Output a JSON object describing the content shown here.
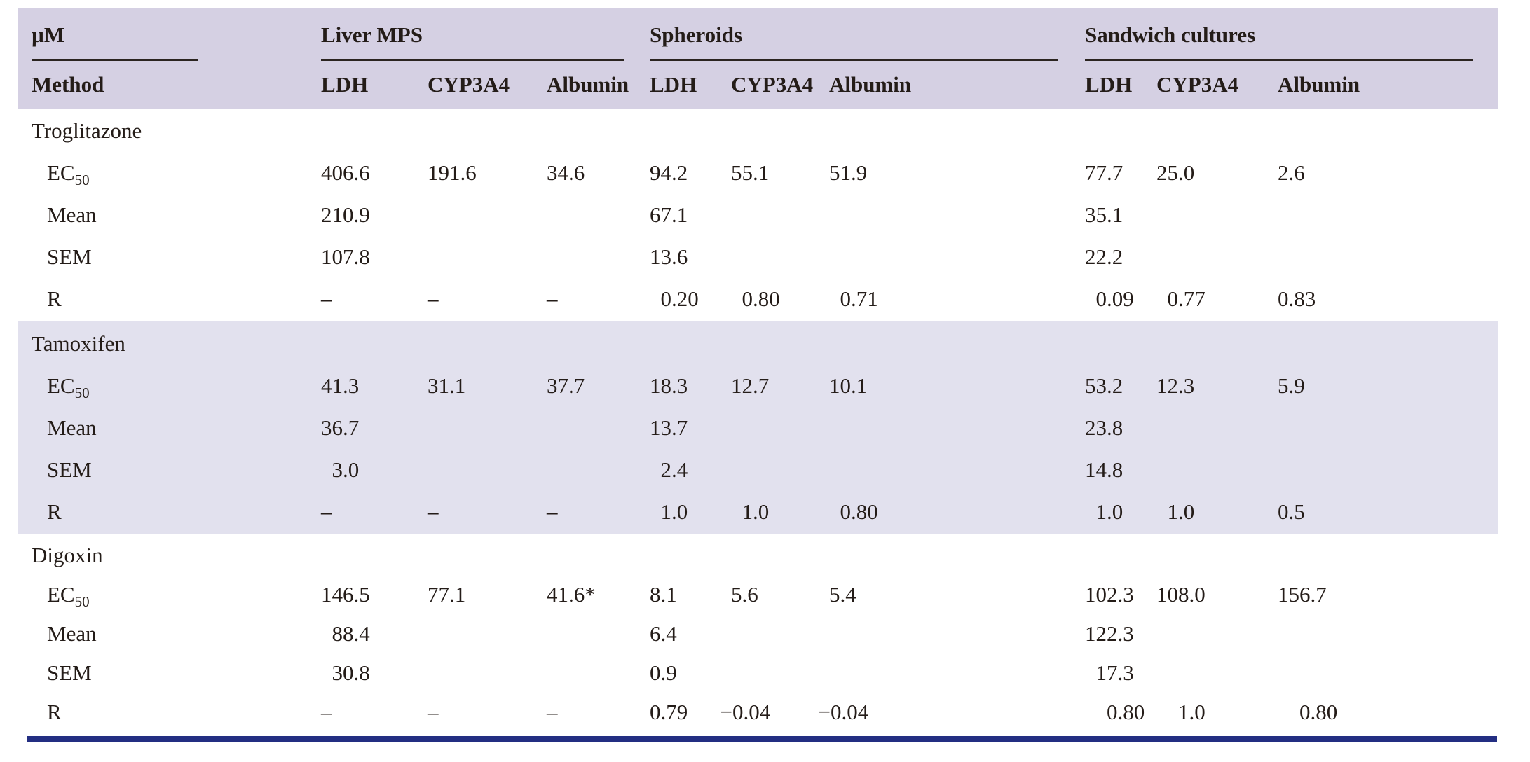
{
  "table": {
    "unit_label": "µM",
    "method_label": "Method",
    "groups": [
      {
        "label": "Liver MPS"
      },
      {
        "label": "Spheroids"
      },
      {
        "label": "Sandwich cultures"
      }
    ],
    "columns": [
      "LDH",
      "CYP3A4",
      "Albumin",
      "LDH",
      "CYP3A4",
      "Albumin",
      "LDH",
      "CYP3A4",
      "Albumin"
    ],
    "sections": [
      {
        "compound": "Troglitazone",
        "highlight": false,
        "rows": [
          {
            "label": "EC",
            "label_sub": "50",
            "values": [
              "406.6",
              "191.6",
              "34.6",
              "94.2",
              "55.1",
              "51.9",
              "77.7",
              "25.0",
              "2.6"
            ]
          },
          {
            "label": "Mean",
            "values": [
              "210.9",
              "",
              "",
              "67.1",
              "",
              "",
              "35.1",
              "",
              ""
            ]
          },
          {
            "label": "SEM",
            "values": [
              "107.8",
              "",
              "",
              "13.6",
              "",
              "",
              "22.2",
              "",
              ""
            ]
          },
          {
            "label": "R",
            "values": [
              "–",
              "–",
              "–",
              "0.20",
              "0.80",
              "0.71",
              "0.09",
              "0.77",
              "0.83"
            ]
          }
        ]
      },
      {
        "compound": "Tamoxifen",
        "highlight": true,
        "rows": [
          {
            "label": "EC",
            "label_sub": "50",
            "values": [
              "41.3",
              "31.1",
              "37.7",
              "18.3",
              "12.7",
              "10.1",
              "53.2",
              "12.3",
              "5.9"
            ]
          },
          {
            "label": "Mean",
            "values": [
              "36.7",
              "",
              "",
              "13.7",
              "",
              "",
              "23.8",
              "",
              ""
            ]
          },
          {
            "label": "SEM",
            "values": [
              "3.0",
              "",
              "",
              "2.4",
              "",
              "",
              "14.8",
              "",
              ""
            ]
          },
          {
            "label": "R",
            "values": [
              "–",
              "–",
              "–",
              "1.0",
              "1.0",
              "0.80",
              "1.0",
              "1.0",
              "0.5"
            ]
          }
        ]
      },
      {
        "compound": "Digoxin",
        "highlight": false,
        "rows": [
          {
            "label": "EC",
            "label_sub": "50",
            "values": [
              "146.5",
              "77.1",
              "41.6*",
              "8.1",
              "5.6",
              "5.4",
              "102.3",
              "108.0",
              "156.7"
            ]
          },
          {
            "label": "Mean",
            "values": [
              "88.4",
              "",
              "",
              "6.4",
              "",
              "",
              "122.3",
              "",
              ""
            ]
          },
          {
            "label": "SEM",
            "values": [
              "30.8",
              "",
              "",
              "0.9",
              "",
              "",
              "17.3",
              "",
              ""
            ]
          },
          {
            "label": "R",
            "values": [
              "–",
              "–",
              "–",
              "0.79",
              "−0.04",
              "−0.04",
              "0.80",
              "1.0",
              "0.80"
            ]
          }
        ]
      }
    ]
  },
  "colors": {
    "header_bg": "#d5d0e3",
    "band_bg": "#e2e1ee",
    "text": "#241c18",
    "header_rule": "#2b2420",
    "bottom_rule": "#232e82"
  }
}
